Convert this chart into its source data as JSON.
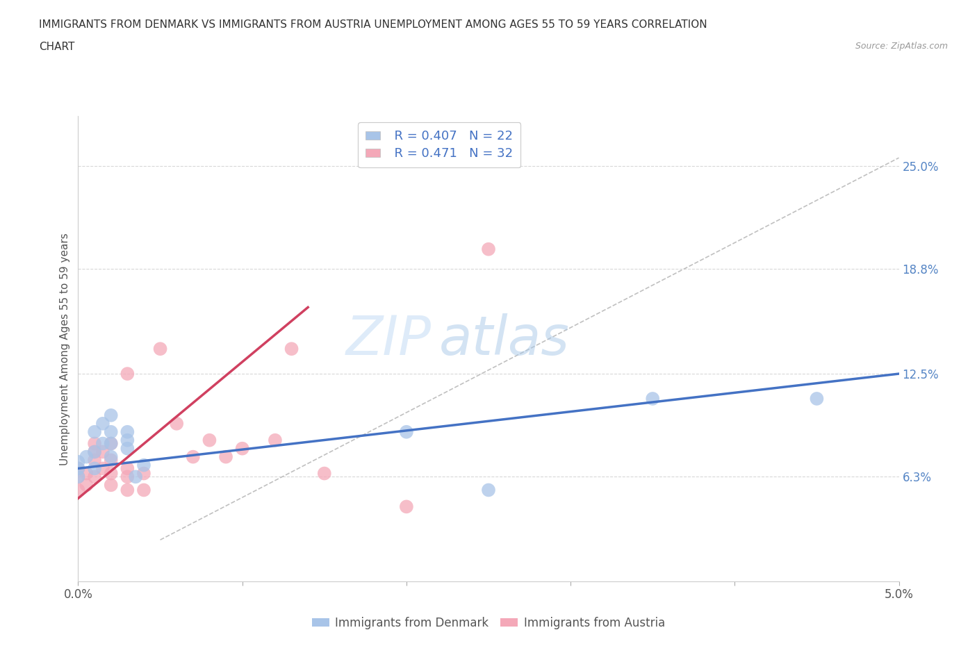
{
  "title_line1": "IMMIGRANTS FROM DENMARK VS IMMIGRANTS FROM AUSTRIA UNEMPLOYMENT AMONG AGES 55 TO 59 YEARS CORRELATION",
  "title_line2": "CHART",
  "source": "Source: ZipAtlas.com",
  "ylabel": "Unemployment Among Ages 55 to 59 years",
  "xlim": [
    0.0,
    0.05
  ],
  "ylim": [
    0.0,
    0.28
  ],
  "xticks": [
    0.0,
    0.01,
    0.02,
    0.03,
    0.04,
    0.05
  ],
  "xticklabels": [
    "0.0%",
    "",
    "",
    "",
    "",
    "5.0%"
  ],
  "right_yticks": [
    0.063,
    0.125,
    0.188,
    0.25
  ],
  "right_yticklabels": [
    "6.3%",
    "12.5%",
    "18.8%",
    "25.0%"
  ],
  "watermark_zip": "ZIP",
  "watermark_atlas": "atlas",
  "denmark_color": "#a8c4e8",
  "austria_color": "#f4a8b8",
  "denmark_line_color": "#4472c4",
  "austria_line_color": "#d04060",
  "denmark_R": 0.407,
  "denmark_N": 22,
  "austria_R": 0.471,
  "austria_N": 32,
  "legend_label_denmark": "Immigrants from Denmark",
  "legend_label_austria": "Immigrants from Austria",
  "denmark_scatter_x": [
    0.0,
    0.0,
    0.0,
    0.0005,
    0.001,
    0.001,
    0.001,
    0.0015,
    0.0015,
    0.002,
    0.002,
    0.002,
    0.002,
    0.003,
    0.003,
    0.003,
    0.0035,
    0.004,
    0.02,
    0.025,
    0.035,
    0.045
  ],
  "denmark_scatter_y": [
    0.063,
    0.068,
    0.072,
    0.075,
    0.068,
    0.078,
    0.09,
    0.083,
    0.095,
    0.075,
    0.083,
    0.09,
    0.1,
    0.08,
    0.085,
    0.09,
    0.063,
    0.07,
    0.09,
    0.055,
    0.11,
    0.11
  ],
  "austria_scatter_x": [
    0.0,
    0.0,
    0.0,
    0.0005,
    0.0005,
    0.001,
    0.001,
    0.001,
    0.001,
    0.0015,
    0.0015,
    0.002,
    0.002,
    0.002,
    0.002,
    0.003,
    0.003,
    0.003,
    0.003,
    0.004,
    0.004,
    0.005,
    0.006,
    0.007,
    0.008,
    0.009,
    0.01,
    0.012,
    0.013,
    0.015,
    0.02,
    0.025
  ],
  "austria_scatter_y": [
    0.055,
    0.063,
    0.068,
    0.058,
    0.065,
    0.063,
    0.073,
    0.078,
    0.083,
    0.068,
    0.078,
    0.058,
    0.065,
    0.073,
    0.083,
    0.055,
    0.063,
    0.068,
    0.125,
    0.055,
    0.065,
    0.14,
    0.095,
    0.075,
    0.085,
    0.075,
    0.08,
    0.085,
    0.14,
    0.065,
    0.045,
    0.2
  ],
  "denmark_line_x": [
    0.0,
    0.05
  ],
  "denmark_line_y": [
    0.068,
    0.125
  ],
  "austria_line_x": [
    0.0,
    0.014
  ],
  "austria_line_y": [
    0.05,
    0.165
  ],
  "diag_line_x": [
    0.005,
    0.05
  ],
  "diag_line_y": [
    0.025,
    0.255
  ],
  "background_color": "#ffffff",
  "grid_color": "#d8d8d8",
  "legend_box_color": "#f0f0f0"
}
